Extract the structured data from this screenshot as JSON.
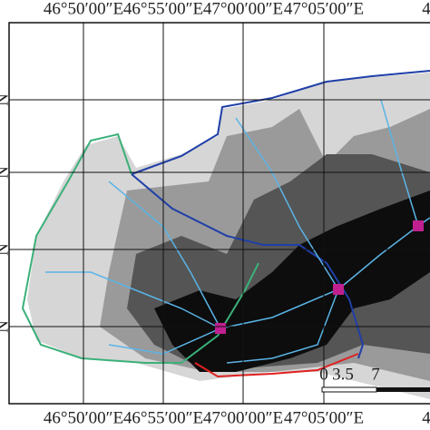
{
  "top_labels": [
    "46°50′00″E",
    "46°55′00″E",
    "47°00′00″E",
    "47°05′00″E",
    "4"
  ],
  "bottom_labels": [
    "46°50′00″E",
    "46°55′00″E",
    "47°00′00″E",
    "47°05′00″E",
    "4"
  ],
  "left_labels": [
    "N",
    "N",
    "N",
    "N"
  ],
  "scale_bar": {
    "labels": [
      "0",
      "3.5",
      "7"
    ]
  }
}
